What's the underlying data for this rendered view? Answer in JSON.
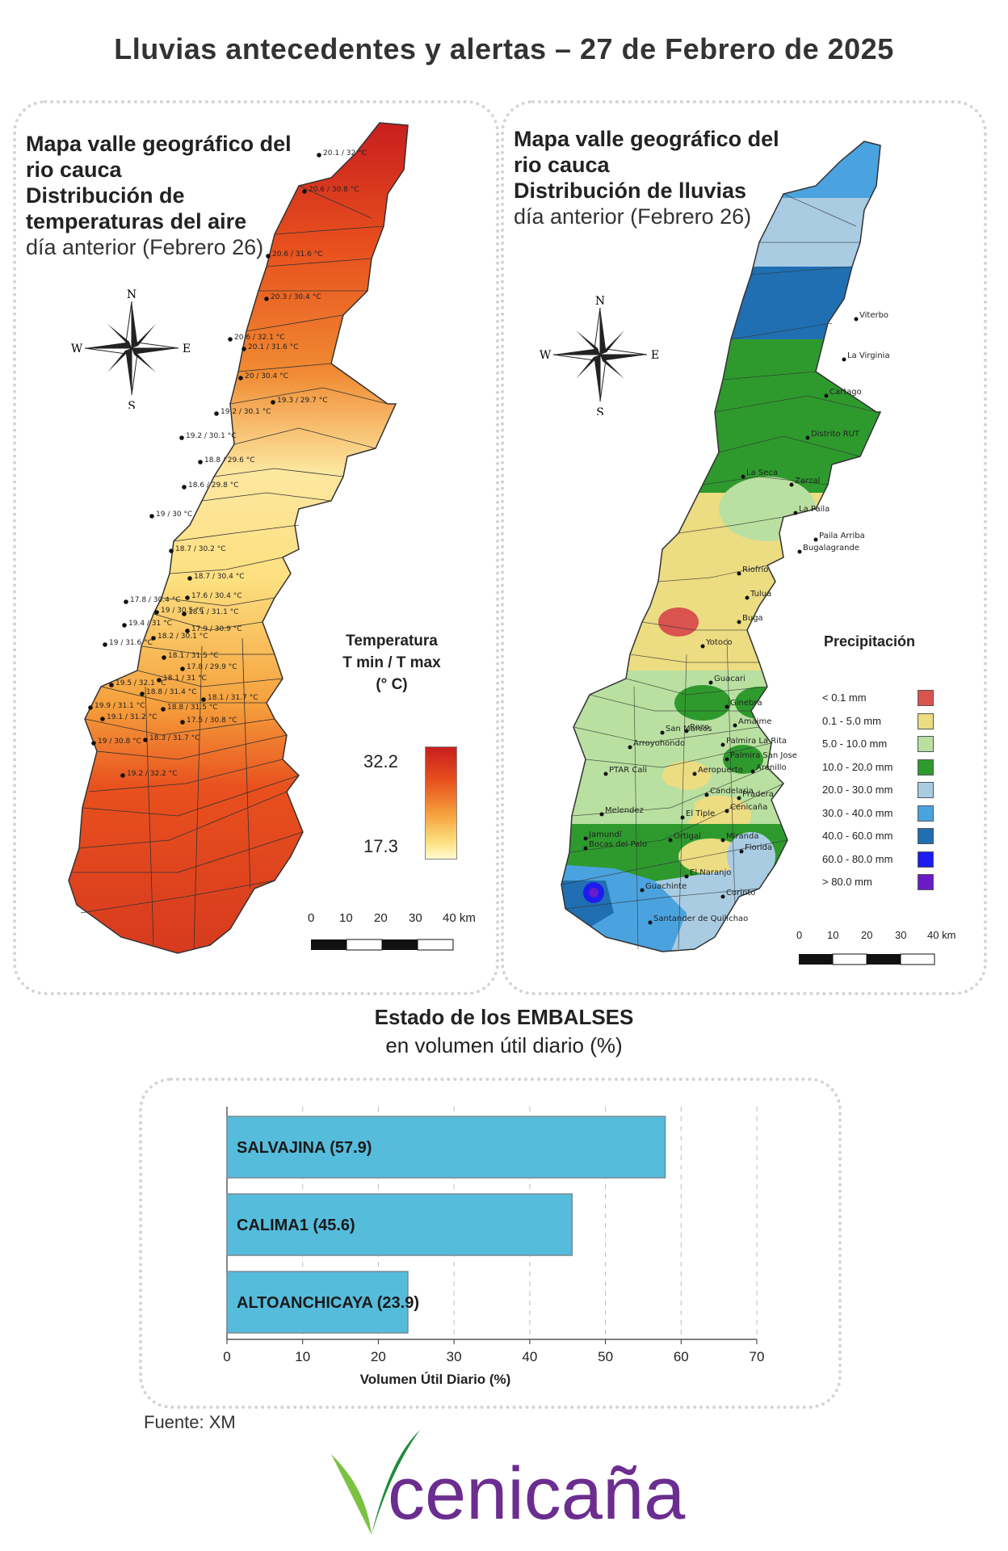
{
  "title": "Lluvias antecedentes y alertas – 27 de Febrero de 2025",
  "temp_panel": {
    "title_line1": "Mapa valle geográfico del",
    "title_line2": "rio cauca",
    "title_line3": "Distribución de",
    "title_line4": "temperaturas del aire",
    "subtitle": "día anterior (Febrero 26)",
    "legend_title_1": "Temperatura",
    "legend_title_2": "T min / T max",
    "legend_title_3": "(° C)",
    "legend_max": "32.2",
    "legend_min": "17.3",
    "scale_labels": [
      "0",
      "10",
      "20",
      "30",
      "40 km"
    ],
    "colors": {
      "hot": "#c81e1e",
      "warm": "#e8501e",
      "mid": "#f5a03c",
      "cool": "#fde080",
      "cold": "#fffbd0"
    },
    "stations": [
      "20.1 / 32 °C",
      "20.6 / 30.8 °C",
      "20.6 / 31.6 °C",
      "20.3 / 30.4 °C",
      "20.6 / 32.1 °C",
      "20.1 / 31.6 °C",
      "20 / 30.4 °C",
      "19.3 / 29.7 °C",
      "19.2 / 30.1 °C",
      "19.2 / 30.1 °C",
      "18.8 / 29.6 °C",
      "18.6 / 29.8 °C",
      "19 / 30 °C",
      "18.7 / 30.2 °C",
      "18.7 / 30.4 °C",
      "17.6 / 30.4 °C",
      "17.8 / 30.4 °C",
      "19 / 30.5 °C",
      "18.1 / 31.1 °C",
      "19.4 / 31 °C",
      "17.9 / 30.9 °C",
      "18.2 / 30.1 °C",
      "19 / 31.6 °C",
      "18.1 / 31.5 °C",
      "17.8 / 29.9 °C",
      "19.5 / 32.1 °C",
      "18.1 / 31 °C",
      "18.8 / 31.4 °C",
      "18.1 / 31.7 °C",
      "19.9 / 31.1 °C",
      "19.1 / 31.2 °C",
      "18.8 / 31.5 °C",
      "17.5 / 30.8 °C",
      "19 / 30.8 °C",
      "18.3 / 31.7 °C",
      "19.2 / 32.2 °C"
    ]
  },
  "rain_panel": {
    "title_line1": "Mapa valle geográfico del",
    "title_line2": "rio cauca",
    "title_line3": "Distribución de lluvias",
    "subtitle": "día anterior (Febrero 26)",
    "legend_title": "Precipitación",
    "scale_labels": [
      "0",
      "10",
      "20",
      "30",
      "40 km"
    ],
    "legend": [
      {
        "label": "< 0.1 mm",
        "color": "#d9534f"
      },
      {
        "label": "0.1 - 5.0 mm",
        "color": "#ecdc82"
      },
      {
        "label": "5.0 - 10.0 mm",
        "color": "#b9e0a0"
      },
      {
        "label": "10.0 - 20.0 mm",
        "color": "#2e9a2e"
      },
      {
        "label": "20.0 - 30.0 mm",
        "color": "#a9cce3"
      },
      {
        "label": "30.0 - 40.0 mm",
        "color": "#4aa3df"
      },
      {
        "label": "40.0 - 60.0 mm",
        "color": "#1f6fb2"
      },
      {
        "label": "60.0 - 80.0 mm",
        "color": "#1c1cf0"
      },
      {
        "label": "> 80.0 mm",
        "color": "#6a1bc8"
      }
    ],
    "stations": [
      "Viterbo",
      "La Virginia",
      "Cartago",
      "Distrito RUT",
      "La Seca",
      "Zarzal",
      "La Paila",
      "Paila Arriba",
      "Bugalagrande",
      "Riofrío",
      "Tuluá",
      "Buga",
      "Yotoco",
      "Guacari",
      "Ginebra",
      "Amaime",
      "San Marcos",
      "Rozo",
      "Palmira La Rita",
      "Arroyohondo",
      "Palmira San Jose",
      "Aeropuerto",
      "Arenillo",
      "PTAR Cali",
      "Candelaria",
      "Pradera",
      "Melendez",
      "El Tiple",
      "Cenicaña",
      "Jamundí",
      "Bocas del Palo",
      "Ortigal",
      "Florida",
      "Miranda",
      "El Naranjo",
      "Guachinte",
      "Corinto",
      "Santander de Quilichao"
    ]
  },
  "reservoirs": {
    "title": "Estado de los EMBALSES",
    "subtitle": "en volumen útil diario (%)",
    "bar_color": "#56bcdb"
  },
  "chart_data": {
    "type": "bar",
    "orientation": "horizontal",
    "categories": [
      "SALVAJINA (57.9)",
      "CALIMA1 (45.6)",
      "ALTOANCHICAYA (23.9)"
    ],
    "values": [
      57.9,
      45.6,
      23.9
    ],
    "xlabel": "Volumen Útil Diario (%)",
    "ylabel": "",
    "xlim": [
      0,
      70
    ],
    "ticks": [
      "0",
      "10",
      "20",
      "30",
      "40",
      "50",
      "60",
      "70"
    ],
    "grid": true
  },
  "footer": {
    "source": "Fuente: XM",
    "logo_text": "cenicaña",
    "logo_colors": {
      "text": "#6b2d8f",
      "leaf_dark": "#1e8c3a",
      "leaf_light": "#7cc242"
    }
  }
}
